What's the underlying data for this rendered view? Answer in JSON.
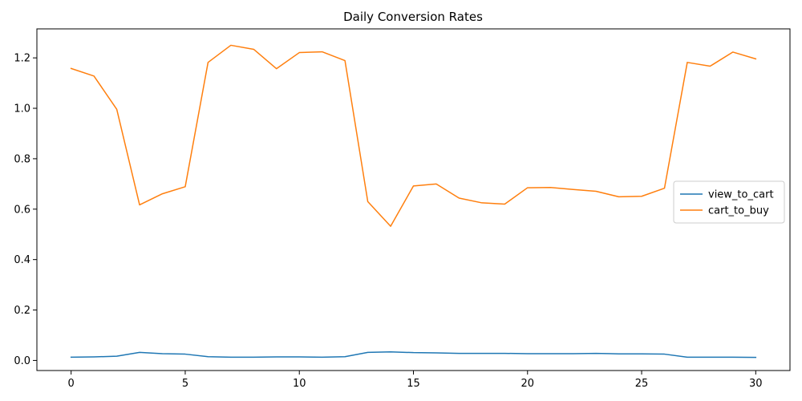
{
  "chart_data": {
    "type": "line",
    "title": "Daily Conversion Rates",
    "xlabel": "",
    "ylabel": "",
    "x": [
      0,
      1,
      2,
      3,
      4,
      5,
      6,
      7,
      8,
      9,
      10,
      11,
      12,
      13,
      14,
      15,
      16,
      17,
      18,
      19,
      20,
      21,
      22,
      23,
      24,
      25,
      26,
      27,
      28,
      29,
      30
    ],
    "xlim": [
      -1.5,
      31.5
    ],
    "ylim": [
      -0.04,
      1.315
    ],
    "x_ticks": [
      0,
      5,
      10,
      15,
      20,
      25,
      30
    ],
    "y_ticks": [
      0.0,
      0.2,
      0.4,
      0.6,
      0.8,
      1.0,
      1.2
    ],
    "y_tick_labels": [
      "0.0",
      "0.2",
      "0.4",
      "0.6",
      "0.8",
      "1.0",
      "1.2"
    ],
    "grid": false,
    "legend_position": "center-right",
    "series": [
      {
        "name": "view_to_cart",
        "color": "#1f77b4",
        "values": [
          0.013,
          0.014,
          0.017,
          0.032,
          0.027,
          0.025,
          0.015,
          0.013,
          0.013,
          0.014,
          0.014,
          0.013,
          0.015,
          0.032,
          0.034,
          0.031,
          0.03,
          0.028,
          0.028,
          0.028,
          0.027,
          0.027,
          0.027,
          0.028,
          0.026,
          0.026,
          0.025,
          0.013,
          0.013,
          0.013,
          0.012
        ]
      },
      {
        "name": "cart_to_buy",
        "color": "#ff7f0e",
        "values": [
          1.158,
          1.128,
          0.996,
          0.617,
          0.661,
          0.689,
          1.182,
          1.25,
          1.234,
          1.157,
          1.221,
          1.224,
          1.189,
          0.63,
          0.532,
          0.692,
          0.7,
          0.644,
          0.625,
          0.62,
          0.685,
          0.686,
          0.678,
          0.671,
          0.649,
          0.651,
          0.683,
          1.182,
          1.167,
          1.223,
          1.196
        ]
      }
    ]
  }
}
